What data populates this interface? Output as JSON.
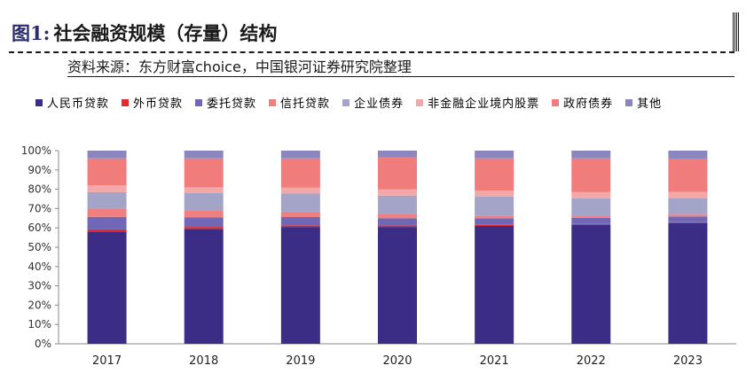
{
  "header": {
    "figure_label": "图1:",
    "title": "社会融资规模（存量）结构",
    "source": "资料来源：东方财富choice，中国银河证券研究院整理"
  },
  "chart_data": {
    "type": "bar",
    "stacked": true,
    "categories": [
      "2017",
      "2018",
      "2019",
      "2020",
      "2021",
      "2022",
      "2023"
    ],
    "y_ticks": [
      "0%",
      "10%",
      "20%",
      "30%",
      "40%",
      "50%",
      "60%",
      "70%",
      "80%",
      "90%",
      "100%"
    ],
    "ylim": [
      0,
      100
    ],
    "legend_position": "top",
    "grid": false,
    "series": [
      {
        "name": "人民币贷款",
        "color": "#3b2d86",
        "values": [
          58,
          59.5,
          60.5,
          60.5,
          61,
          61.5,
          62.5
        ]
      },
      {
        "name": "外币贷款",
        "color": "#e8292b",
        "values": [
          1.2,
          1.0,
          0.8,
          0.7,
          0.6,
          0.5,
          0.4
        ]
      },
      {
        "name": "委托贷款",
        "color": "#7167b7",
        "values": [
          6.5,
          5.0,
          4.3,
          3.8,
          3.4,
          3.2,
          3.0
        ]
      },
      {
        "name": "信托贷款",
        "color": "#f08080",
        "values": [
          4.3,
          3.5,
          2.8,
          2.0,
          1.4,
          1.1,
          1.0
        ]
      },
      {
        "name": "企业债券",
        "color": "#a4a4c9",
        "values": [
          8.5,
          9.0,
          9.4,
          9.7,
          9.8,
          9.0,
          8.5
        ]
      },
      {
        "name": "非金融企业境内股票",
        "color": "#f3a8a8",
        "values": [
          3.5,
          3.0,
          3.0,
          3.2,
          3.1,
          3.2,
          3.2
        ]
      },
      {
        "name": "政府债券",
        "color": "#f17c7c",
        "values": [
          14.0,
          15.0,
          15.2,
          16.6,
          16.7,
          17.5,
          17.3
        ]
      },
      {
        "name": "其他",
        "color": "#8c86bf",
        "values": [
          4.0,
          4.0,
          4.0,
          3.5,
          4.0,
          4.0,
          4.1
        ]
      }
    ]
  }
}
